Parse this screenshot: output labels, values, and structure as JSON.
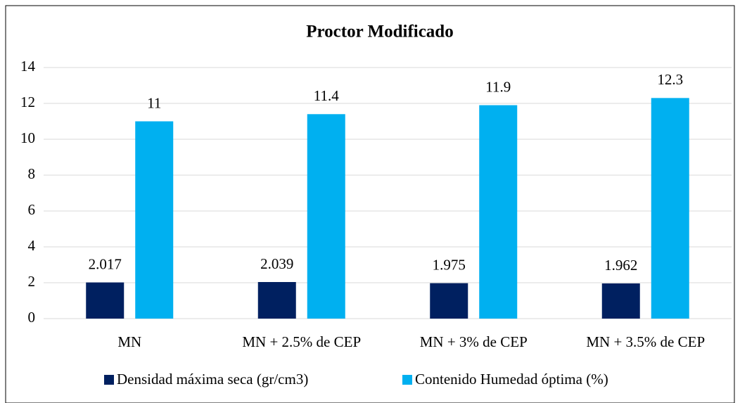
{
  "chart_data": {
    "type": "bar",
    "title": "Proctor Modificado",
    "categories": [
      "MN",
      "MN + 2.5% de CEP",
      "MN + 3% de CEP",
      "MN + 3.5% de CEP"
    ],
    "series": [
      {
        "name": "Densidad máxima seca (gr/cm3)",
        "color": "#002060",
        "values": [
          2.017,
          2.039,
          1.975,
          1.962
        ]
      },
      {
        "name": "Contenido Humedad óptima (%)",
        "color": "#00b0f0",
        "values": [
          11,
          11.4,
          11.9,
          12.3
        ]
      }
    ],
    "ylim": [
      0,
      14
    ],
    "yticks": [
      0,
      2,
      4,
      6,
      8,
      10,
      12,
      14
    ],
    "grid": true,
    "legend": "bottom"
  }
}
